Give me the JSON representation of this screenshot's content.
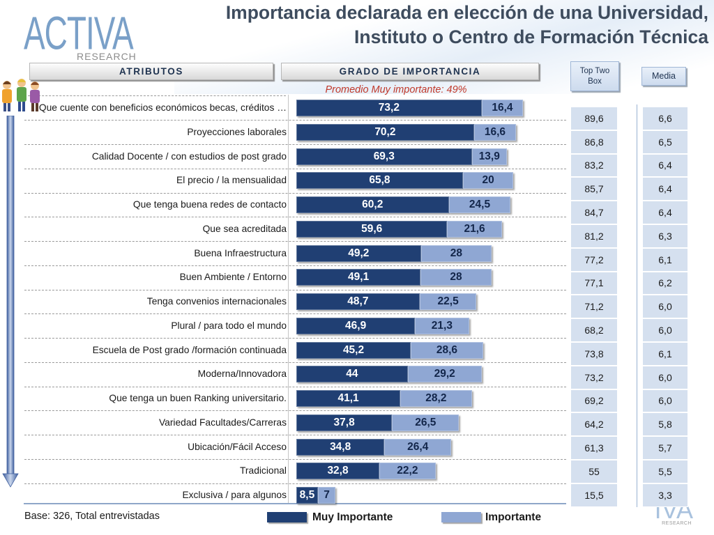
{
  "logo": {
    "brand": "ACTIVA",
    "tagline": "RESEARCH"
  },
  "icons": {
    "people": "people-icon",
    "rank_arrow": "arrow-down-icon"
  },
  "colors": {
    "title": "#3e4c5e",
    "annotation": "#c0392b",
    "header_text": "#1f3350",
    "table_cell": "#d5e0ef",
    "logo": "#7aa0c8"
  },
  "chart_data": {
    "type": "bar",
    "orientation": "horizontal",
    "stacked": true,
    "title_lines": [
      "Importancia declarada en elección de una Universidad,",
      "Instituto o Centro de Formación Técnica"
    ],
    "annotation": "Promedio Muy importante: 49%",
    "column_headers": {
      "categories": "ATRIBUTOS",
      "bars": "GRADO DE IMPORTANCIA",
      "top_two_box": "Top Two Box",
      "media": "Media"
    },
    "categories": [
      "Que cuente con beneficios económicos becas, créditos …",
      "Proyecciones laborales",
      "Calidad Docente / con estudios de post grado",
      "El precio / la mensualidad",
      "Que tenga buena redes de contacto",
      "Que sea acreditada",
      "Buena Infraestructura",
      "Buen Ambiente / Entorno",
      "Tenga convenios internacionales",
      "Plural / para todo el mundo",
      "Escuela de Post grado /formación continuada",
      "Moderna/Innovadora",
      "Que tenga un buen Ranking universitario.",
      "Variedad Facultades/Carreras",
      "Ubicación/Fácil Acceso",
      "Tradicional",
      "Exclusiva / para algunos"
    ],
    "series": [
      {
        "name": "Muy Importante",
        "color": "#203f73",
        "values": [
          73.2,
          70.2,
          69.3,
          65.8,
          60.2,
          59.6,
          49.2,
          49.1,
          48.7,
          46.9,
          45.2,
          44,
          41.1,
          37.8,
          34.8,
          32.8,
          8.5
        ]
      },
      {
        "name": "Importante",
        "color": "#8fa7d3",
        "values": [
          16.4,
          16.6,
          13.9,
          20,
          24.5,
          21.6,
          28,
          28,
          22.5,
          21.3,
          28.6,
          29.2,
          28.2,
          26.5,
          26.4,
          22.2,
          7
        ]
      }
    ],
    "top_two_box": [
      89.6,
      86.8,
      83.2,
      85.7,
      84.7,
      81.2,
      77.2,
      77.1,
      71.2,
      68.2,
      73.8,
      73.2,
      69.2,
      64.2,
      61.3,
      55,
      15.5
    ],
    "media": [
      6.6,
      6.5,
      6.4,
      6.4,
      6.4,
      6.3,
      6.1,
      6.2,
      6.0,
      6.0,
      6.1,
      6.0,
      6.0,
      5.8,
      5.7,
      5.5,
      3.3
    ],
    "xlim": [
      0,
      100
    ],
    "grid": false,
    "legend": "bottom",
    "note": "Base: 326, Total entrevistadas"
  }
}
